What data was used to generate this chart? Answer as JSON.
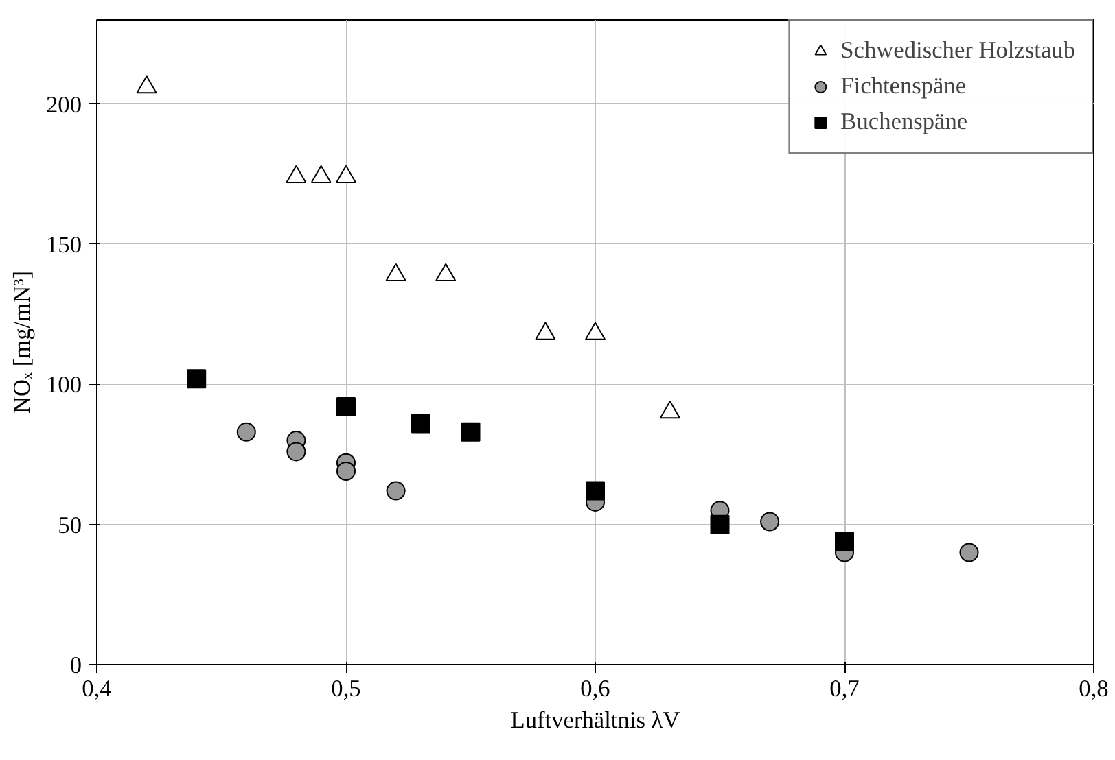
{
  "chart_data": {
    "type": "scatter",
    "xlabel": "Luftverhältnis λV",
    "ylabel": "NOₓ [mg/mN³]",
    "xlim": [
      0.4,
      0.8
    ],
    "ylim": [
      0,
      230
    ],
    "xticks": [
      {
        "value": 0.4,
        "label": "0,4"
      },
      {
        "value": 0.5,
        "label": "0,5"
      },
      {
        "value": 0.6,
        "label": "0,6"
      },
      {
        "value": 0.7,
        "label": "0,7"
      },
      {
        "value": 0.8,
        "label": "0,8"
      }
    ],
    "yticks": [
      0,
      50,
      100,
      150,
      200
    ],
    "grid": true,
    "legend": "top right",
    "series": [
      {
        "name": "Schwedischer Holzstaub",
        "color": "#ffffff",
        "marker": "triangle",
        "x": [
          0.42,
          0.48,
          0.49,
          0.5,
          0.52,
          0.54,
          0.58,
          0.6,
          0.63
        ],
        "values": [
          206,
          174,
          174,
          174,
          139,
          139,
          118,
          118,
          90
        ]
      },
      {
        "name": "Fichtenspäne",
        "color": "#999999",
        "marker": "circle",
        "x": [
          0.46,
          0.48,
          0.48,
          0.5,
          0.5,
          0.52,
          0.6,
          0.65,
          0.67,
          0.7,
          0.75
        ],
        "values": [
          83,
          80,
          76,
          72,
          69,
          62,
          58,
          55,
          51,
          40,
          40
        ]
      },
      {
        "name": "Buchenspäne",
        "color": "#000000",
        "marker": "square",
        "x": [
          0.44,
          0.5,
          0.53,
          0.55,
          0.6,
          0.65,
          0.7
        ],
        "values": [
          102,
          92,
          86,
          83,
          62,
          50,
          44
        ]
      }
    ]
  }
}
